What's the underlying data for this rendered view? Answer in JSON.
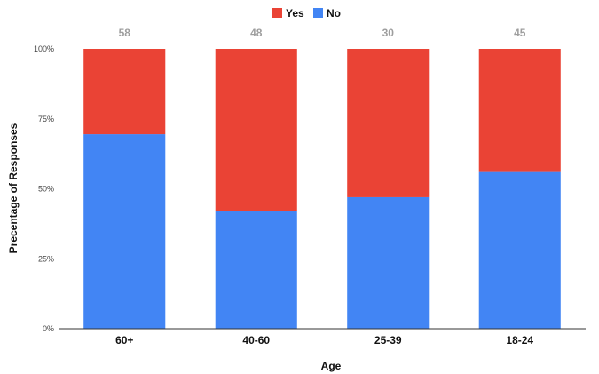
{
  "chart_data": {
    "type": "bar",
    "stacked": true,
    "normalized": true,
    "xlabel": "Age",
    "ylabel": "Precentage of Responses",
    "categories": [
      "60+",
      "40-60",
      "25-39",
      "18-24"
    ],
    "totals": [
      "58",
      "48",
      "30",
      "45"
    ],
    "series": [
      {
        "name": "No",
        "color": "#4285f4",
        "values": [
          69.5,
          42,
          47,
          56
        ]
      },
      {
        "name": "Yes",
        "color": "#ea4335",
        "values": [
          30.5,
          58,
          53,
          44
        ]
      }
    ],
    "legend": {
      "position": "top",
      "items": [
        {
          "label": "Yes",
          "color": "#ea4335"
        },
        {
          "label": "No",
          "color": "#4285f4"
        }
      ]
    },
    "y_ticks": [
      "0%",
      "25%",
      "50%",
      "75%",
      "100%"
    ],
    "y_tick_values": [
      0,
      25,
      50,
      75,
      100
    ],
    "ylim": [
      0,
      100
    ],
    "grid": false
  }
}
